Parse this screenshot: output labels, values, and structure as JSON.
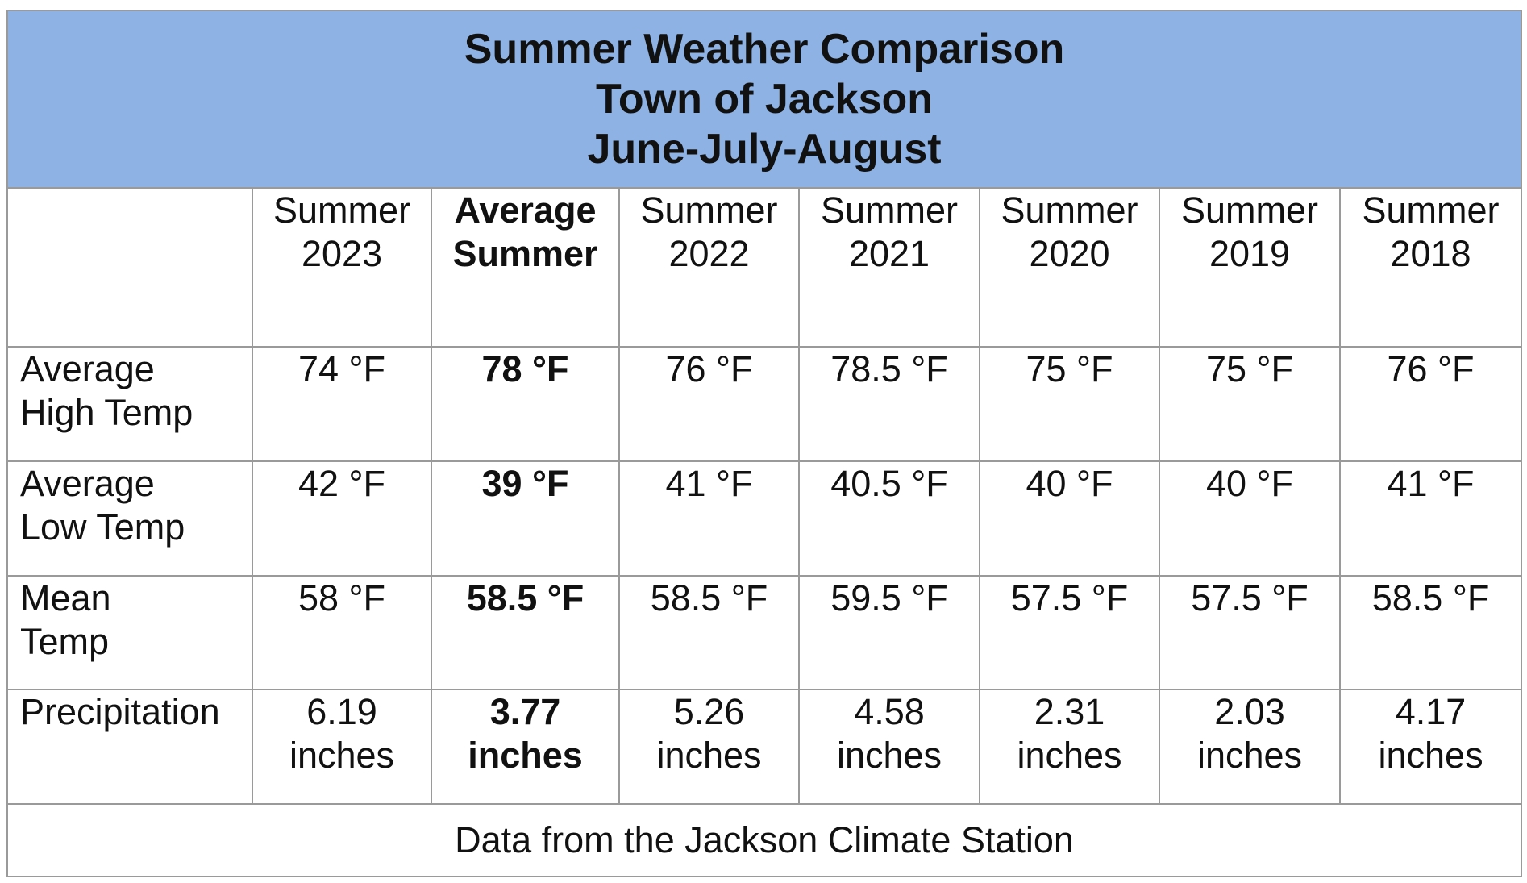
{
  "title": {
    "line1": "Summer Weather Comparison",
    "line2": "Town of Jackson",
    "line3": "June-July-August"
  },
  "columns": [
    {
      "line1": "Summer",
      "line2": "2023",
      "bold": false
    },
    {
      "line1": "Average",
      "line2": "Summer",
      "bold": true
    },
    {
      "line1": "Summer",
      "line2": "2022",
      "bold": false
    },
    {
      "line1": "Summer",
      "line2": "2021",
      "bold": false
    },
    {
      "line1": "Summer",
      "line2": "2020",
      "bold": false
    },
    {
      "line1": "Summer",
      "line2": "2019",
      "bold": false
    },
    {
      "line1": "Summer",
      "line2": "2018",
      "bold": false
    }
  ],
  "rows": [
    {
      "label_line1": "Average",
      "label_line2": "High Temp",
      "values": [
        "74 °F",
        "78 °F",
        "76 °F",
        "78.5 °F",
        "75 °F",
        "75 °F",
        "76 °F"
      ]
    },
    {
      "label_line1": "Average",
      "label_line2": "Low Temp",
      "values": [
        "42 °F",
        "39 °F",
        "41 °F",
        "40.5 °F",
        "40 °F",
        "40 °F",
        "41 °F"
      ]
    },
    {
      "label_line1": "Mean",
      "label_line2": "Temp",
      "values": [
        "58 °F",
        "58.5 °F",
        "58.5 °F",
        "59.5 °F",
        "57.5 °F",
        "57.5 °F",
        "58.5 °F"
      ]
    },
    {
      "label_line1": "Precipitation",
      "label_line2": "",
      "values": [
        {
          "amount": "6.19",
          "unit": "inches"
        },
        {
          "amount": "3.77",
          "unit": "inches"
        },
        {
          "amount": "5.26",
          "unit": "inches"
        },
        {
          "amount": "4.58",
          "unit": "inches"
        },
        {
          "amount": "2.31",
          "unit": "inches"
        },
        {
          "amount": "2.03",
          "unit": "inches"
        },
        {
          "amount": "4.17",
          "unit": "inches"
        }
      ]
    }
  ],
  "footer": "Data from the Jackson Climate Station",
  "colors": {
    "header_background": "#8db2e3",
    "grid_lines": "#9a9a9a"
  }
}
